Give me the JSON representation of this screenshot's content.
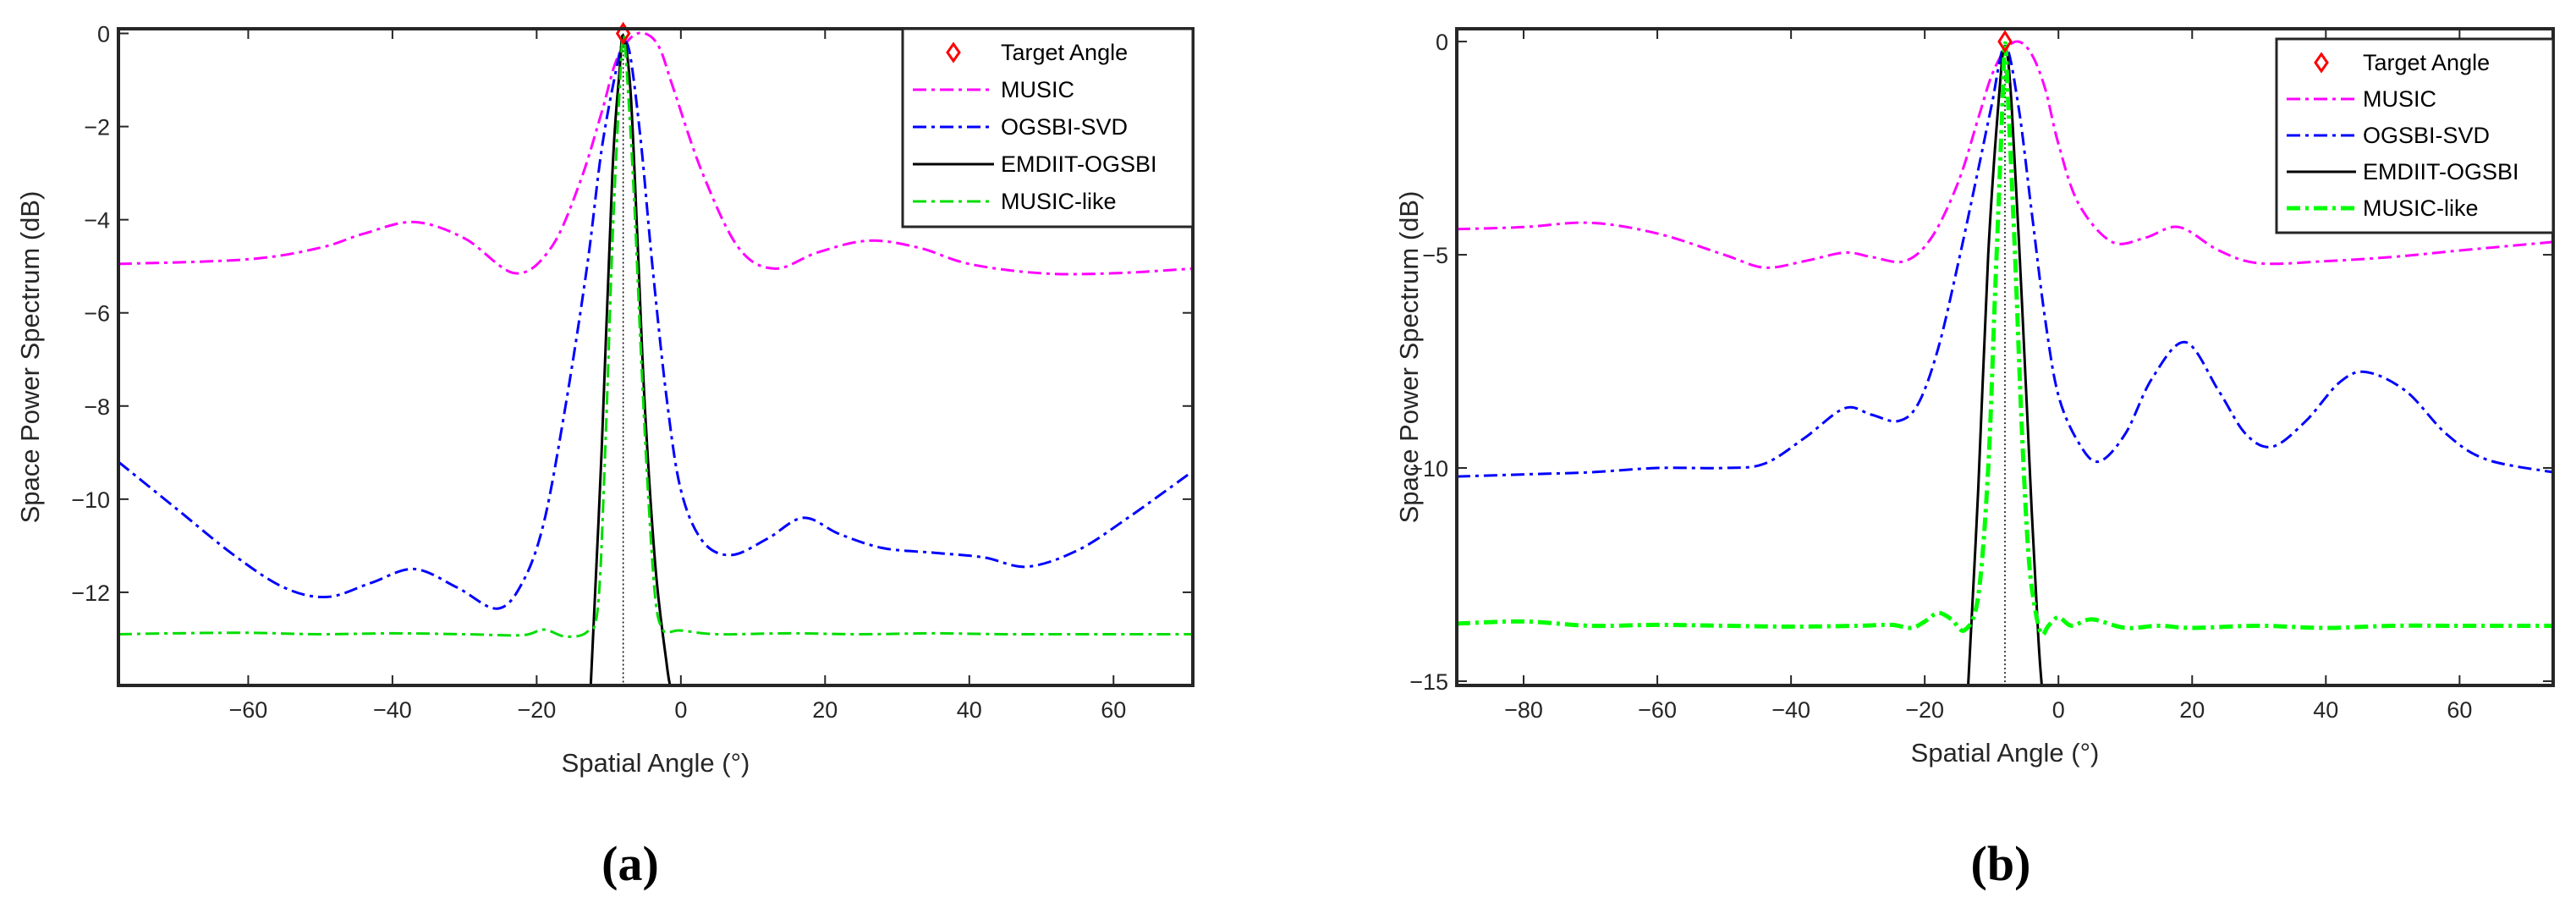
{
  "chart_data": [
    {
      "type": "line",
      "panel_label": "(a)",
      "xlabel": "Spatial Angle (°)",
      "ylabel": "Space Power Spectrum (dB)",
      "xlim": [
        -78,
        71
      ],
      "ylim": [
        -14,
        0.1
      ],
      "xticks": [
        -60,
        -40,
        -20,
        0,
        20,
        40,
        60
      ],
      "yticks": [
        0,
        -2,
        -4,
        -6,
        -8,
        -10,
        -12
      ],
      "xtick_labels": [
        "−60",
        "−40",
        "−20",
        "0",
        "20",
        "40",
        "60"
      ],
      "ytick_labels": [
        "0",
        "−2",
        "−4",
        "−6",
        "−8",
        "−10",
        "−12"
      ],
      "legend_position": "top-right",
      "target_angle": -8,
      "target_marker": {
        "x": -8,
        "y": 0
      },
      "series": [
        {
          "name": "Target Angle",
          "style": "diamond",
          "color": "#ff0000"
        },
        {
          "name": "MUSIC",
          "style": "dashdot",
          "color": "#ff00ff",
          "x": [
            -78,
            -60,
            -50,
            -44,
            -37,
            -30,
            -23,
            -18,
            -14,
            -11,
            -9,
            -7,
            -5,
            -3,
            -1,
            3,
            8,
            13,
            19,
            26,
            33,
            40,
            50,
            60,
            71
          ],
          "y": [
            -4.95,
            -4.85,
            -4.6,
            -4.3,
            -4.05,
            -4.4,
            -5.15,
            -4.6,
            -3.2,
            -1.7,
            -0.6,
            -0.1,
            0.0,
            -0.3,
            -1.2,
            -3.0,
            -4.6,
            -5.05,
            -4.7,
            -4.45,
            -4.6,
            -4.95,
            -5.15,
            -5.15,
            -5.05
          ]
        },
        {
          "name": "OGSBI-SVD",
          "style": "dashdot",
          "color": "#0000ff",
          "x": [
            -78,
            -70,
            -62,
            -55,
            -49,
            -43,
            -37,
            -31,
            -25.5,
            -22,
            -19,
            -16,
            -13,
            -11,
            -9,
            -8,
            -7,
            -5.5,
            -4,
            -2,
            0,
            3,
            7,
            12,
            17,
            22,
            28,
            35,
            42,
            48,
            55,
            62,
            71
          ],
          "y": [
            -9.2,
            -10.2,
            -11.2,
            -11.9,
            -12.1,
            -11.8,
            -11.5,
            -11.9,
            -12.35,
            -11.8,
            -10.5,
            -8.0,
            -5.0,
            -2.5,
            -0.8,
            -0.2,
            -0.5,
            -2.4,
            -4.9,
            -7.8,
            -9.8,
            -10.9,
            -11.2,
            -10.85,
            -10.4,
            -10.75,
            -11.05,
            -11.15,
            -11.25,
            -11.45,
            -11.1,
            -10.4,
            -9.4
          ]
        },
        {
          "name": "EMDIIT-OGSBI",
          "style": "solid",
          "color": "#000000",
          "x": [
            -12.5,
            -11,
            -9.5,
            -8.5,
            -8,
            -7,
            -6,
            -5,
            -3.5,
            -2,
            -1.5
          ],
          "y": [
            -14.0,
            -9.0,
            -3.0,
            -0.8,
            -0.05,
            -1.2,
            -4.5,
            -8.0,
            -11.5,
            -13.5,
            -14.0
          ]
        },
        {
          "name": "MUSIC-like",
          "style": "dashdot",
          "color": "#00dd00",
          "x": [
            -78,
            -70,
            -60,
            -50,
            -40,
            -30,
            -22,
            -19,
            -16,
            -13,
            -11.5,
            -10.5,
            -9.5,
            -8.5,
            -8,
            -7.5,
            -6.5,
            -5.5,
            -4.5,
            -3.5,
            -2.5,
            -1.5,
            0,
            5,
            15,
            25,
            35,
            45,
            55,
            71
          ],
          "y": [
            -12.9,
            -12.88,
            -12.87,
            -12.9,
            -12.88,
            -12.9,
            -12.92,
            -12.8,
            -12.95,
            -12.85,
            -12.3,
            -9.0,
            -4.5,
            -1.2,
            -0.05,
            -0.8,
            -3.5,
            -7.0,
            -10.0,
            -12.2,
            -12.8,
            -12.85,
            -12.82,
            -12.9,
            -12.88,
            -12.9,
            -12.88,
            -12.9,
            -12.9,
            -12.9
          ]
        }
      ]
    },
    {
      "type": "line",
      "panel_label": "(b)",
      "xlabel": "Spatial Angle (°)",
      "ylabel": "Space Power Spectrum (dB)",
      "xlim": [
        -90,
        74
      ],
      "ylim": [
        -15.1,
        0.3
      ],
      "xticks": [
        -80,
        -60,
        -40,
        -20,
        0,
        20,
        40,
        60
      ],
      "yticks": [
        0,
        -5,
        -10,
        -15
      ],
      "xtick_labels": [
        "−80",
        "−60",
        "−40",
        "−20",
        "0",
        "20",
        "40",
        "60"
      ],
      "ytick_labels": [
        "0",
        "−5",
        "−10",
        "−15"
      ],
      "legend_position": "top-right",
      "target_angle": -8,
      "target_marker": {
        "x": -8,
        "y": 0
      },
      "series": [
        {
          "name": "Target Angle",
          "style": "diamond",
          "color": "#ff0000"
        },
        {
          "name": "MUSIC",
          "style": "dashdot",
          "color": "#ff00ff",
          "x": [
            -90,
            -80,
            -70,
            -60,
            -50,
            -44,
            -38,
            -32,
            -28,
            -23,
            -19,
            -15,
            -12,
            -10,
            -8,
            -6,
            -4,
            -2,
            0,
            3,
            8,
            13,
            18,
            24,
            30,
            40,
            50,
            60,
            74
          ],
          "y": [
            -4.4,
            -4.35,
            -4.25,
            -4.5,
            -5.0,
            -5.3,
            -5.15,
            -4.95,
            -5.05,
            -5.15,
            -4.6,
            -3.3,
            -1.8,
            -0.8,
            -0.2,
            0.0,
            -0.3,
            -1.1,
            -2.4,
            -3.8,
            -4.7,
            -4.6,
            -4.35,
            -4.9,
            -5.2,
            -5.15,
            -5.05,
            -4.9,
            -4.7
          ]
        },
        {
          "name": "OGSBI-SVD",
          "style": "dashdot",
          "color": "#0000ff",
          "x": [
            -90,
            -80,
            -70,
            -60,
            -50,
            -44,
            -38,
            -32,
            -28,
            -24,
            -21,
            -18,
            -15,
            -12,
            -10,
            -8,
            -6,
            -4,
            -2,
            0,
            3,
            6,
            10,
            14,
            19,
            24,
            28,
            32,
            37,
            42,
            46,
            52,
            58,
            64,
            74
          ],
          "y": [
            -10.2,
            -10.15,
            -10.1,
            -10.0,
            -10.0,
            -9.9,
            -9.3,
            -8.6,
            -8.75,
            -8.9,
            -8.5,
            -7.2,
            -5.2,
            -3.0,
            -1.5,
            -0.1,
            -1.5,
            -4.0,
            -6.5,
            -8.3,
            -9.4,
            -9.85,
            -9.2,
            -7.9,
            -7.05,
            -8.2,
            -9.2,
            -9.5,
            -8.9,
            -8.0,
            -7.75,
            -8.2,
            -9.2,
            -9.8,
            -10.1
          ]
        },
        {
          "name": "EMDIIT-OGSBI",
          "style": "solid",
          "color": "#000000",
          "x": [
            -13.5,
            -12,
            -10.5,
            -9,
            -8,
            -7,
            -5.5,
            -4,
            -3,
            -2.5
          ],
          "y": [
            -15.1,
            -10.5,
            -5.0,
            -1.5,
            -0.1,
            -1.5,
            -6.0,
            -11.0,
            -14.0,
            -15.1
          ]
        },
        {
          "name": "MUSIC-like",
          "style": "dashdot",
          "color": "#00ff00",
          "x": [
            -90,
            -80,
            -70,
            -60,
            -50,
            -40,
            -30,
            -25,
            -22,
            -20,
            -18,
            -16,
            -14,
            -12,
            -10.5,
            -9.5,
            -8.5,
            -8,
            -7.5,
            -6.5,
            -5.5,
            -4.5,
            -3.5,
            -2.5,
            -1.5,
            0,
            2,
            5,
            10,
            15,
            20,
            30,
            40,
            50,
            60,
            74
          ],
          "y": [
            -13.65,
            -13.6,
            -13.7,
            -13.68,
            -13.7,
            -13.72,
            -13.7,
            -13.68,
            -13.75,
            -13.6,
            -13.4,
            -13.55,
            -13.8,
            -13.0,
            -10.0,
            -6.0,
            -2.0,
            -0.05,
            -1.5,
            -5.0,
            -9.0,
            -12.0,
            -13.3,
            -13.9,
            -13.7,
            -13.5,
            -13.7,
            -13.55,
            -13.75,
            -13.7,
            -13.75,
            -13.7,
            -13.75,
            -13.7,
            -13.7,
            -13.7
          ]
        }
      ]
    }
  ]
}
